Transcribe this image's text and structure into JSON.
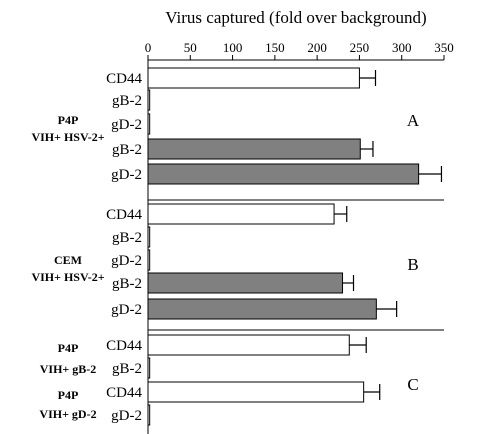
{
  "chart_data": {
    "type": "bar",
    "orientation": "horizontal",
    "title": "Virus captured (fold over background)",
    "xlim": [
      0,
      350
    ],
    "xticks": [
      0,
      50,
      100,
      150,
      200,
      250,
      300,
      350
    ],
    "grid": false,
    "colors": {
      "open": "#ffffff",
      "filled": "#808080",
      "stroke": "#000000"
    },
    "panels": [
      {
        "label": "A",
        "groups": [
          {
            "lines": [
              "P4P",
              "VIH+ HSV-2+"
            ],
            "bars": [
              {
                "category": "CD44",
                "value": 250,
                "error": 19,
                "fill": "open"
              },
              {
                "category": "gB-2",
                "value": 2,
                "error": 0,
                "fill": "open"
              },
              {
                "category": "gD-2",
                "value": 2,
                "error": 0,
                "fill": "open"
              },
              {
                "category": "gB-2",
                "value": 251,
                "error": 15,
                "fill": "filled"
              },
              {
                "category": "gD-2",
                "value": 320,
                "error": 27,
                "fill": "filled"
              }
            ]
          }
        ]
      },
      {
        "label": "B",
        "groups": [
          {
            "lines": [
              "CEM",
              "VIH+ HSV-2+"
            ],
            "bars": [
              {
                "category": "CD44",
                "value": 220,
                "error": 15,
                "fill": "open"
              },
              {
                "category": "gB-2",
                "value": 2,
                "error": 0,
                "fill": "open"
              },
              {
                "category": "gD-2",
                "value": 2,
                "error": 0,
                "fill": "open"
              },
              {
                "category": "gB-2",
                "value": 230,
                "error": 13,
                "fill": "filled"
              },
              {
                "category": "gD-2",
                "value": 270,
                "error": 24,
                "fill": "filled"
              }
            ]
          }
        ]
      },
      {
        "label": "C",
        "groups": [
          {
            "lines": [
              "P4P",
              "VIH+ gB-2"
            ],
            "bars": [
              {
                "category": "CD44",
                "value": 238,
                "error": 20,
                "fill": "open"
              },
              {
                "category": "gB-2",
                "value": 2,
                "error": 0,
                "fill": "open"
              }
            ]
          },
          {
            "lines": [
              "P4P",
              "VIH+ gD-2"
            ],
            "bars": [
              {
                "category": "CD44",
                "value": 255,
                "error": 19,
                "fill": "open"
              },
              {
                "category": "gD-2",
                "value": 2,
                "error": 0,
                "fill": "open"
              }
            ]
          }
        ]
      }
    ]
  }
}
